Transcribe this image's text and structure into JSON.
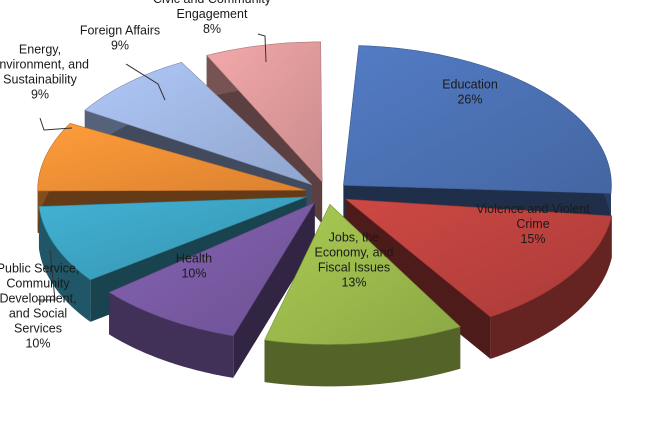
{
  "chart_data": {
    "type": "pie",
    "style": "3d-exploded",
    "title": "",
    "legend": "none",
    "slices": [
      {
        "label": "Education",
        "label_lines": [
          "Education",
          "26%"
        ],
        "value": 26,
        "color": "#4a6fb0",
        "label_pos": "inside"
      },
      {
        "label": "Violence and Violent Crime",
        "label_lines": [
          "Violence and Violent",
          "Crime",
          "15%"
        ],
        "value": 15,
        "color": "#b8403d",
        "label_pos": "inside"
      },
      {
        "label": "Jobs, the Economy, and Fiscal Issues",
        "label_lines": [
          "Jobs, the",
          "Economy, and",
          "Fiscal Issues",
          "13%"
        ],
        "value": 13,
        "color": "#98b54a",
        "label_pos": "inside"
      },
      {
        "label": "Health",
        "label_lines": [
          "Health",
          "10%"
        ],
        "value": 10,
        "color": "#7758a0",
        "label_pos": "inside"
      },
      {
        "label": "Public Service, Community Development, and Social Services",
        "label_lines": [
          "Public Service,",
          "Community",
          "Development,",
          "and Social",
          "Services",
          "10%"
        ],
        "value": 10,
        "color": "#3b9fbd",
        "label_pos": "outside"
      },
      {
        "label": "Energy, Environment, and Sustainability",
        "label_lines": [
          "Energy,",
          "Environment, and",
          "Sustainability",
          "9%"
        ],
        "value": 9,
        "color": "#ee8c34",
        "label_pos": "outside"
      },
      {
        "label": "Foreign Affairs",
        "label_lines": [
          "Foreign Affairs",
          "9%"
        ],
        "value": 9,
        "color": "#9db3de",
        "label_pos": "outside"
      },
      {
        "label": "Civic and Community Engagement",
        "label_lines": [
          "Civic and Community",
          "Engagement",
          "8%"
        ],
        "value": 8,
        "color": "#da9798",
        "label_pos": "outside"
      }
    ]
  }
}
